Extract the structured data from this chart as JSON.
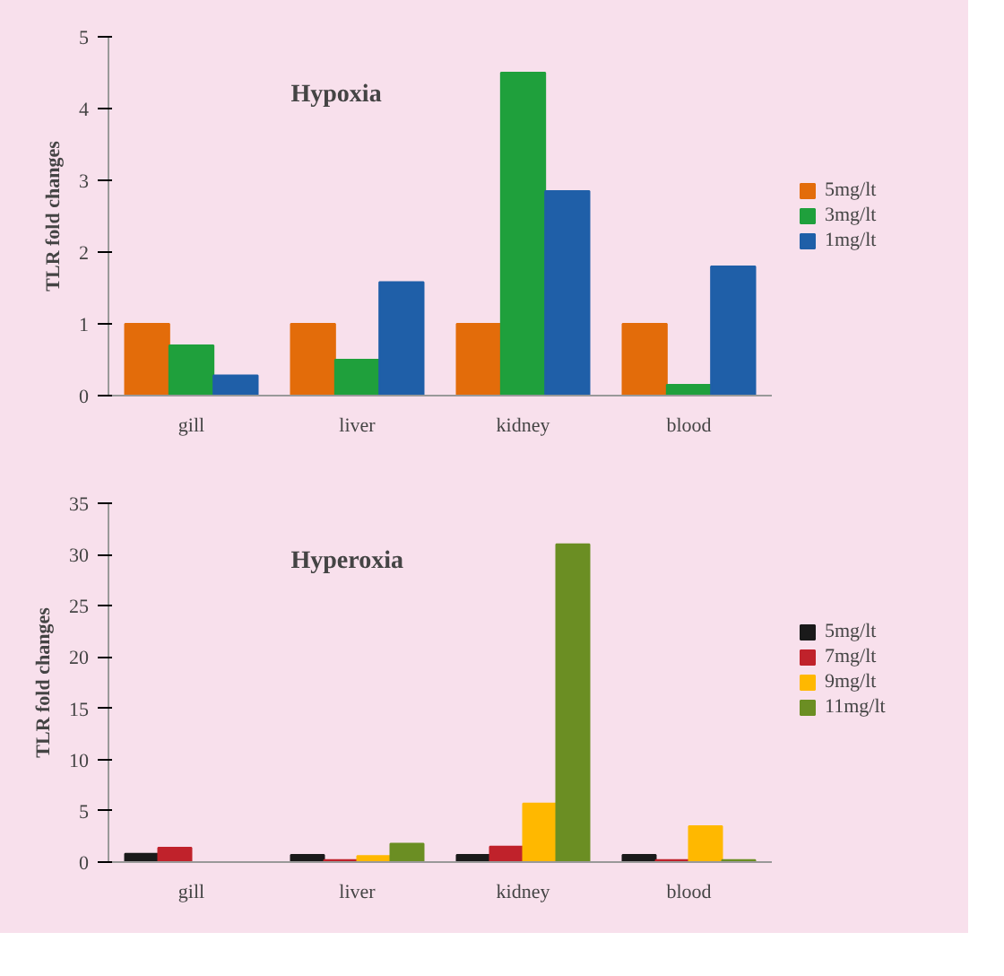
{
  "chart_data": [
    {
      "type": "bar",
      "title": "Hypoxia",
      "ylabel": "TLR fold changes",
      "categories": [
        "gill",
        "liver",
        "kidney",
        "blood"
      ],
      "ylim": [
        0,
        5
      ],
      "yticks": [
        0,
        1,
        2,
        3,
        4,
        5
      ],
      "grid": false,
      "legend": "right",
      "series": [
        {
          "name": "5mg/lt",
          "color": "#e36c0a",
          "values": [
            1,
            1,
            1,
            1
          ]
        },
        {
          "name": "3mg/lt",
          "color": "#1fa03c",
          "values": [
            0.7,
            0.5,
            4.5,
            0.15
          ]
        },
        {
          "name": "1mg/lt",
          "color": "#1f5fa8",
          "values": [
            0.28,
            1.58,
            2.85,
            1.8
          ]
        }
      ]
    },
    {
      "type": "bar",
      "title": "Hyperoxia",
      "ylabel": "TLR fold changes",
      "categories": [
        "gill",
        "liver",
        "kidney",
        "blood"
      ],
      "ylim": [
        0,
        35
      ],
      "yticks": [
        0,
        5,
        10,
        15,
        20,
        25,
        30,
        35
      ],
      "grid": false,
      "legend": "right",
      "series": [
        {
          "name": "5mg/lt",
          "color": "#1a1a1a",
          "values": [
            0.8,
            0.7,
            0.7,
            0.7
          ]
        },
        {
          "name": "7mg/lt",
          "color": "#c0222b",
          "values": [
            1.4,
            0.2,
            1.5,
            0.2
          ]
        },
        {
          "name": "9mg/lt",
          "color": "#ffb800",
          "values": [
            null,
            0.6,
            5.7,
            3.5
          ]
        },
        {
          "name": "11mg/lt",
          "color": "#6b8e23",
          "values": [
            null,
            1.8,
            31,
            0.2
          ]
        }
      ]
    }
  ]
}
